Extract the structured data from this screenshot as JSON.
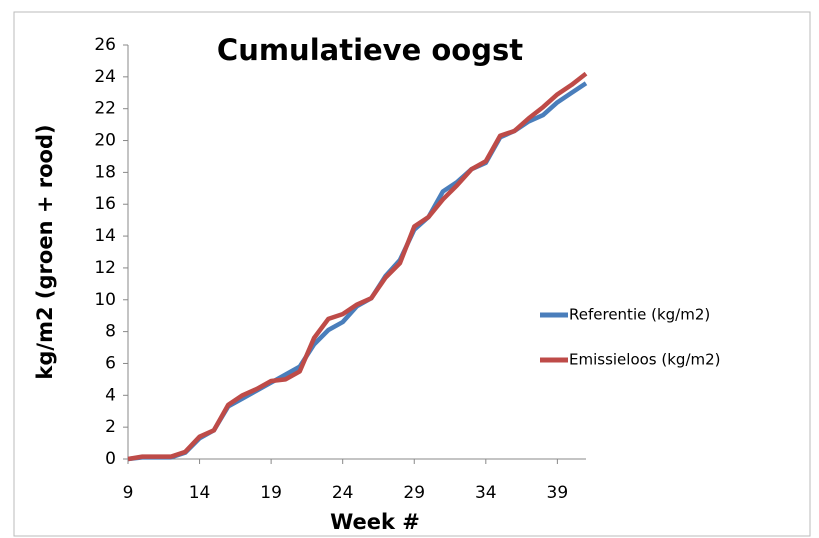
{
  "chart_data": {
    "type": "line",
    "title": "Cumulatieve oogst",
    "x_label": "Week #",
    "y_label": "kg/m2 (groen + rood)",
    "x": [
      9,
      10,
      11,
      12,
      13,
      14,
      15,
      16,
      17,
      18,
      19,
      20,
      21,
      22,
      23,
      24,
      25,
      26,
      27,
      28,
      29,
      30,
      31,
      32,
      33,
      34,
      35,
      36,
      37,
      38,
      39,
      40,
      41
    ],
    "series": [
      {
        "name": "Referentie (kg/m2)",
        "color": "#4a7ebb",
        "values": [
          0,
          0.1,
          0.1,
          0.1,
          0.4,
          1.3,
          1.8,
          3.3,
          3.8,
          4.3,
          4.8,
          5.3,
          5.8,
          7.2,
          8.1,
          8.6,
          9.6,
          10.1,
          11.5,
          12.5,
          14.4,
          15.2,
          16.8,
          17.4,
          18.2,
          18.6,
          20.2,
          20.6,
          21.2,
          21.6,
          22.4,
          23.0,
          23.6
        ]
      },
      {
        "name": "Emissieloos (kg/m2)",
        "color": "#be4b48",
        "values": [
          0,
          0.15,
          0.15,
          0.15,
          0.45,
          1.4,
          1.8,
          3.4,
          4.0,
          4.4,
          4.9,
          5.0,
          5.5,
          7.6,
          8.8,
          9.1,
          9.7,
          10.1,
          11.4,
          12.3,
          14.6,
          15.2,
          16.3,
          17.2,
          18.2,
          18.7,
          20.3,
          20.6,
          21.4,
          22.1,
          22.9,
          23.5,
          24.2
        ]
      }
    ],
    "xlim": [
      9,
      41
    ],
    "xticks": [
      9,
      14,
      19,
      24,
      29,
      34,
      39
    ],
    "ylim": [
      0,
      26
    ],
    "yticks": [
      0,
      2,
      4,
      6,
      8,
      10,
      12,
      14,
      16,
      18,
      20,
      22,
      24,
      26
    ],
    "legend": "right"
  }
}
